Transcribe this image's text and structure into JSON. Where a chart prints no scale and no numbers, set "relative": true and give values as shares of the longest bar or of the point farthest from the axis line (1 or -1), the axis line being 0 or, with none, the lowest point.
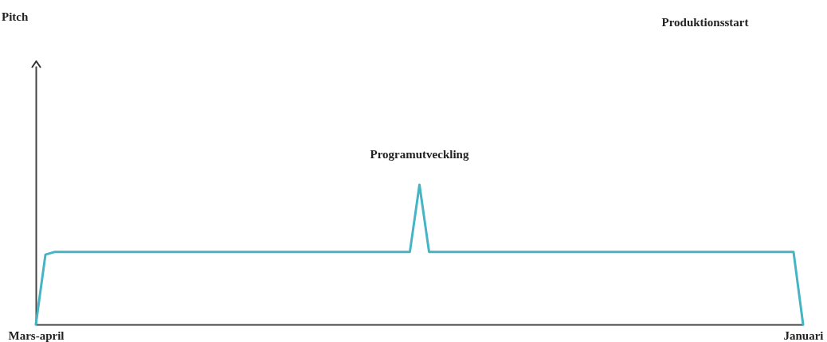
{
  "chart_data": {
    "type": "line",
    "relative": true,
    "categories": [
      "Mars-april",
      null,
      null,
      null,
      null,
      null,
      null,
      null,
      null,
      null,
      null,
      null,
      null,
      null,
      null,
      null,
      null,
      null,
      null,
      null,
      null,
      null,
      null,
      null,
      null,
      null,
      null,
      null,
      null,
      null,
      null,
      null,
      null,
      null,
      null,
      null,
      null,
      null,
      null,
      null,
      null,
      null,
      null,
      null,
      null,
      null,
      null,
      null,
      null,
      null,
      null,
      null,
      null,
      null,
      null,
      null,
      null,
      null,
      null,
      null,
      null,
      null,
      null,
      null,
      null,
      null,
      null,
      null,
      null,
      null,
      null,
      null,
      null,
      null,
      null,
      null,
      null,
      null,
      null,
      null,
      "Januari"
    ],
    "series": [
      {
        "color": "#45b5c4",
        "values": [
          0,
          0.5,
          0.52,
          0.52,
          0.52,
          0.52,
          0.52,
          0.52,
          0.52,
          0.52,
          0.52,
          0.52,
          0.52,
          0.52,
          0.52,
          0.52,
          0.52,
          0.52,
          0.52,
          0.52,
          0.52,
          0.52,
          0.52,
          0.52,
          0.52,
          0.52,
          0.52,
          0.52,
          0.52,
          0.52,
          0.52,
          0.52,
          0.52,
          0.52,
          0.52,
          0.52,
          0.52,
          0.52,
          0.52,
          0.52,
          1,
          0.52,
          0.52,
          0.52,
          0.52,
          0.52,
          0.52,
          0.52,
          0.52,
          0.52,
          0.52,
          0.52,
          0.52,
          0.52,
          0.52,
          0.52,
          0.52,
          0.52,
          0.52,
          0.52,
          0.52,
          0.52,
          0.52,
          0.52,
          0.52,
          0.52,
          0.52,
          0.52,
          0.52,
          0.52,
          0.52,
          0.52,
          0.52,
          0.52,
          0.52,
          0.52,
          0.52,
          0.52,
          0.52,
          0.52,
          0
        ]
      }
    ],
    "annotations": [
      "Pitch",
      "Programutveckling",
      "Produktionsstart"
    ],
    "grid": false,
    "legend": false,
    "marker": "none",
    "line_style": "solid"
  }
}
